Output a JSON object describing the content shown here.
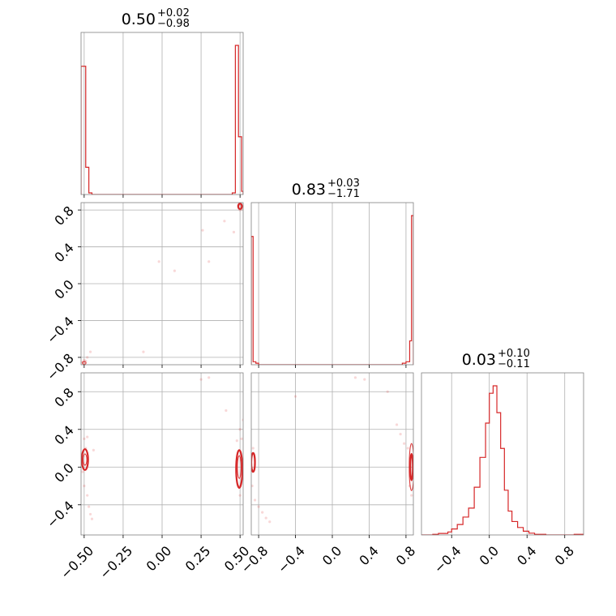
{
  "chart_data": {
    "type": "corner",
    "params": [
      {
        "title_value": "0.50",
        "title_plus": "+0.02",
        "title_minus": "−0.98",
        "range": [
          -0.52,
          0.52
        ]
      },
      {
        "title_value": "0.83",
        "title_plus": "+0.03",
        "title_minus": "−1.71",
        "range": [
          -0.88,
          0.88
        ]
      },
      {
        "title_value": "0.03",
        "title_plus": "+0.10",
        "title_minus": "−0.11",
        "range": [
          -0.72,
          1.0
        ]
      }
    ],
    "ticks": {
      "p0": [
        {
          "v": -0.5,
          "label": "−0.50"
        },
        {
          "v": -0.25,
          "label": "−0.25"
        },
        {
          "v": 0.0,
          "label": "0.00"
        },
        {
          "v": 0.25,
          "label": "0.25"
        },
        {
          "v": 0.5,
          "label": "0.50"
        }
      ],
      "p1": [
        {
          "v": -0.8,
          "label": "−0.8"
        },
        {
          "v": -0.4,
          "label": "−0.4"
        },
        {
          "v": 0.0,
          "label": "0.0"
        },
        {
          "v": 0.4,
          "label": "0.4"
        },
        {
          "v": 0.8,
          "label": "0.8"
        }
      ],
      "p2": [
        {
          "v": -0.4,
          "label": "−0.4"
        },
        {
          "v": 0.0,
          "label": "0.0"
        },
        {
          "v": 0.4,
          "label": "0.4"
        },
        {
          "v": 0.8,
          "label": "0.8"
        }
      ]
    },
    "hist": [
      {
        "param": 0,
        "bins": [
          [
            -0.52,
            -0.49,
            0.8
          ],
          [
            -0.49,
            -0.47,
            0.17
          ],
          [
            -0.47,
            -0.45,
            0.01
          ],
          [
            -0.45,
            0.45,
            0.0
          ],
          [
            0.45,
            0.47,
            0.01
          ],
          [
            0.47,
            0.49,
            0.93
          ],
          [
            0.49,
            0.51,
            0.36
          ],
          [
            0.51,
            0.52,
            0.02
          ]
        ]
      },
      {
        "param": 1,
        "bins": [
          [
            -0.88,
            -0.86,
            0.86
          ],
          [
            -0.86,
            -0.83,
            0.02
          ],
          [
            -0.83,
            -0.8,
            0.01
          ],
          [
            -0.8,
            0.76,
            0.0
          ],
          [
            0.76,
            0.8,
            0.01
          ],
          [
            0.8,
            0.84,
            0.02
          ],
          [
            0.84,
            0.86,
            0.16
          ],
          [
            0.86,
            0.88,
            1.0
          ]
        ]
      },
      {
        "param": 2,
        "bins": [
          [
            -0.72,
            -0.6,
            0.0
          ],
          [
            -0.6,
            -0.54,
            0.004
          ],
          [
            -0.54,
            -0.44,
            0.01
          ],
          [
            -0.44,
            -0.4,
            0.02
          ],
          [
            -0.4,
            -0.34,
            0.04
          ],
          [
            -0.34,
            -0.28,
            0.07
          ],
          [
            -0.28,
            -0.22,
            0.12
          ],
          [
            -0.22,
            -0.16,
            0.18
          ],
          [
            -0.16,
            -0.1,
            0.32
          ],
          [
            -0.1,
            -0.04,
            0.52
          ],
          [
            -0.04,
            0.0,
            0.75
          ],
          [
            0.0,
            0.04,
            0.95
          ],
          [
            0.04,
            0.08,
            1.0
          ],
          [
            0.08,
            0.12,
            0.82
          ],
          [
            0.12,
            0.16,
            0.58
          ],
          [
            0.16,
            0.2,
            0.3
          ],
          [
            0.2,
            0.24,
            0.16
          ],
          [
            0.24,
            0.3,
            0.09
          ],
          [
            0.3,
            0.36,
            0.05
          ],
          [
            0.36,
            0.42,
            0.025
          ],
          [
            0.42,
            0.48,
            0.012
          ],
          [
            0.48,
            0.6,
            0.004
          ],
          [
            0.6,
            0.9,
            0.0
          ],
          [
            0.9,
            1.0,
            0.004
          ]
        ]
      }
    ],
    "scatter": [
      {
        "x": 0,
        "y": 1,
        "points": [
          [
            0.5,
            0.86
          ],
          [
            0.51,
            0.84
          ],
          [
            0.49,
            0.85
          ],
          [
            0.51,
            0.81
          ],
          [
            0.52,
            0.83
          ],
          [
            0.5,
            0.8
          ],
          [
            -0.5,
            -0.86
          ],
          [
            -0.51,
            -0.85
          ],
          [
            -0.49,
            -0.84
          ],
          [
            -0.5,
            -0.83
          ],
          [
            -0.46,
            -0.74
          ],
          [
            -0.48,
            -0.8
          ],
          [
            -0.12,
            -0.74
          ],
          [
            0.26,
            0.58
          ],
          [
            -0.02,
            0.24
          ],
          [
            0.08,
            0.14
          ],
          [
            0.3,
            0.24
          ],
          [
            0.4,
            0.68
          ],
          [
            0.46,
            0.56
          ]
        ]
      },
      {
        "x": 0,
        "y": 2,
        "points": [
          [
            -0.5,
            0.3
          ],
          [
            -0.49,
            0.2
          ],
          [
            -0.51,
            -0.05
          ],
          [
            -0.5,
            -0.2
          ],
          [
            -0.48,
            -0.3
          ],
          [
            -0.47,
            -0.42
          ],
          [
            -0.46,
            -0.5
          ],
          [
            -0.45,
            -0.55
          ],
          [
            -0.44,
            0.18
          ],
          [
            0.5,
            0.4
          ],
          [
            0.51,
            0.3
          ],
          [
            0.49,
            -0.2
          ],
          [
            0.5,
            -0.3
          ],
          [
            0.52,
            0.5
          ],
          [
            0.48,
            0.28
          ],
          [
            0.41,
            0.6
          ],
          [
            0.25,
            0.93
          ],
          [
            0.3,
            0.95
          ],
          [
            -0.48,
            0.32
          ]
        ]
      },
      {
        "x": 1,
        "y": 2,
        "points": [
          [
            -0.86,
            0.2
          ],
          [
            -0.87,
            -0.2
          ],
          [
            -0.84,
            -0.35
          ],
          [
            -0.8,
            -0.42
          ],
          [
            -0.76,
            -0.48
          ],
          [
            -0.72,
            -0.54
          ],
          [
            -0.68,
            -0.58
          ],
          [
            0.7,
            0.45
          ],
          [
            0.74,
            0.35
          ],
          [
            0.78,
            0.25
          ],
          [
            0.82,
            0.2
          ],
          [
            0.84,
            -0.2
          ],
          [
            0.86,
            -0.3
          ],
          [
            0.6,
            0.8
          ],
          [
            0.25,
            0.95
          ],
          [
            0.35,
            0.93
          ],
          [
            -0.4,
            0.75
          ]
        ]
      }
    ],
    "contours": [
      {
        "x": 0,
        "y": 2,
        "blobs": [
          {
            "cx": -0.495,
            "cy": 0.08,
            "rx": 0.02,
            "ry": 0.11
          },
          {
            "cx": -0.495,
            "cy": 0.08,
            "rx": 0.012,
            "ry": 0.06
          },
          {
            "cx": 0.495,
            "cy": -0.02,
            "rx": 0.02,
            "ry": 0.2
          },
          {
            "cx": 0.495,
            "cy": 0.0,
            "rx": 0.012,
            "ry": 0.12
          }
        ]
      },
      {
        "x": 1,
        "y": 2,
        "blobs": [
          {
            "cx": -0.86,
            "cy": 0.05,
            "rx": 0.02,
            "ry": 0.1
          },
          {
            "cx": 0.86,
            "cy": 0.0,
            "rx": 0.025,
            "ry": 0.25
          },
          {
            "cx": 0.86,
            "cy": 0.0,
            "rx": 0.014,
            "ry": 0.14
          }
        ]
      },
      {
        "x": 0,
        "y": 1,
        "blobs": [
          {
            "cx": 0.5,
            "cy": 0.84,
            "rx": 0.012,
            "ry": 0.03
          },
          {
            "cx": -0.5,
            "cy": -0.86,
            "rx": 0.012,
            "ry": 0.015
          }
        ]
      }
    ],
    "grid": true,
    "color": "#d62728"
  }
}
